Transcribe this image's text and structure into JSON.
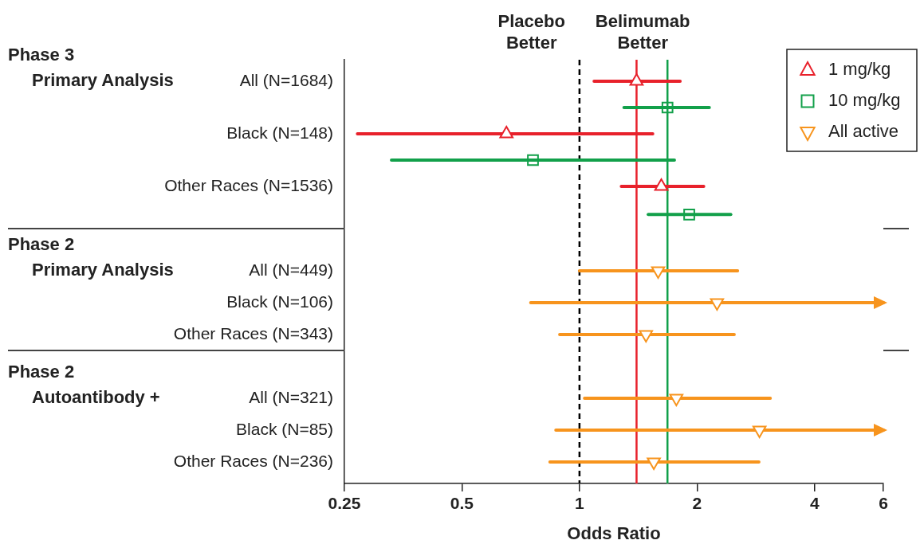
{
  "chart_data": {
    "type": "scatter",
    "orientation": "horizontal",
    "xlabel": "Odds Ratio",
    "log": "x",
    "grid": false,
    "legend": "top right",
    "categories": [
      "All (N=1684)",
      null,
      "Black (N=148)",
      null,
      "Other Races (N=1536)",
      null,
      null,
      "All (N=449)",
      "Black (N=106)",
      "Other Races (N=343)",
      null,
      "All (N=321)",
      "Black (N=85)",
      "Other Races (N=236)"
    ],
    "xlim": [
      0.25,
      6
    ],
    "xticks": [
      0.25,
      0.5,
      1,
      2,
      4,
      6
    ],
    "series": [
      {
        "name": "1 mg/kg",
        "color": "#e8212b",
        "marker": "triangle",
        "values": [
          1.4,
          null,
          0.65,
          null,
          1.62,
          null,
          null,
          null,
          null,
          null,
          null,
          null,
          null,
          null
        ],
        "errors": [
          [
            1.09,
            1.81
          ],
          null,
          [
            0.27,
            1.54
          ],
          null,
          [
            1.28,
            2.08
          ],
          null,
          null,
          null,
          null,
          null,
          null,
          null,
          null,
          null
        ]
      },
      {
        "name": "10 mg/kg",
        "color": "#12a04a",
        "marker": "square",
        "values": [
          null,
          1.68,
          null,
          0.76,
          null,
          1.91,
          null,
          null,
          null,
          null,
          null,
          null,
          null,
          null
        ],
        "errors": [
          null,
          [
            1.3,
            2.15
          ],
          null,
          [
            0.33,
            1.75
          ],
          null,
          [
            1.5,
            2.44
          ],
          null,
          null,
          null,
          null,
          null,
          null,
          null,
          null
        ]
      },
      {
        "name": "All active",
        "color": "#f7941d",
        "marker": "triangle-down",
        "values": [
          null,
          null,
          null,
          null,
          null,
          null,
          null,
          1.59,
          2.25,
          1.48,
          null,
          1.77,
          2.89,
          1.55
        ],
        "errors": [
          null,
          null,
          null,
          null,
          null,
          null,
          null,
          [
            1.0,
            2.54
          ],
          [
            0.75,
            6
          ],
          [
            0.89,
            2.49
          ],
          null,
          [
            1.03,
            3.08
          ],
          [
            0.87,
            6
          ],
          [
            0.84,
            2.88
          ]
        ]
      }
    ],
    "ref_lines": [
      {
        "axis": "x",
        "value": 1,
        "color": "#000000",
        "line_style": "dashed"
      },
      {
        "axis": "x",
        "value": 1.4,
        "color": "#e8212b"
      },
      {
        "axis": "x",
        "value": 1.68,
        "color": "#12a04a"
      }
    ],
    "annotations": [
      "Placebo Better",
      "Belimumab Better",
      "Phase 3",
      "Primary Analysis",
      "Phase 2",
      "Primary Analysis",
      "Phase 2",
      "Autoantibody +"
    ]
  }
}
